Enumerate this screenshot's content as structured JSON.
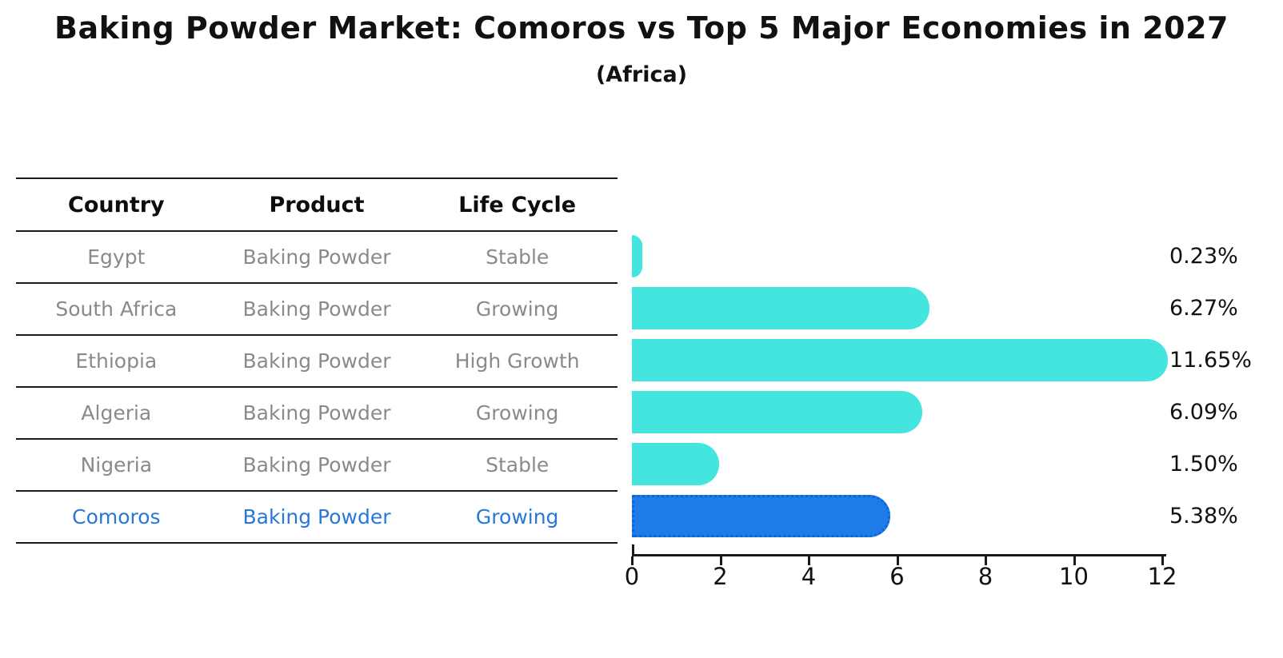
{
  "title": "Baking Powder Market: Comoros vs Top 5 Major Economies in 2027",
  "subtitle": "(Africa)",
  "colors": {
    "bar": "#44E5DF",
    "highlight_bar": "#1E7CE8",
    "highlight_bar_edge": "#0E63D8",
    "highlight_text": "#2878D8",
    "muted_text": "#8A8A8A",
    "text": "#111111",
    "line": "#1A1A1A"
  },
  "table": {
    "columns": [
      "Country",
      "Product",
      "Life Cycle"
    ],
    "rows": [
      {
        "country": "Egypt",
        "product": "Baking Powder",
        "life_cycle": "Stable",
        "highlight": false
      },
      {
        "country": "South Africa",
        "product": "Baking Powder",
        "life_cycle": "Growing",
        "highlight": false
      },
      {
        "country": "Ethiopia",
        "product": "Baking Powder",
        "life_cycle": "High Growth",
        "highlight": false
      },
      {
        "country": "Algeria",
        "product": "Baking Powder",
        "life_cycle": "Growing",
        "highlight": false
      },
      {
        "country": "Nigeria",
        "product": "Baking Powder",
        "life_cycle": "Stable",
        "highlight": false
      },
      {
        "country": "Comoros",
        "product": "Baking Powder",
        "life_cycle": "Growing",
        "highlight": true
      }
    ]
  },
  "chart_data": {
    "type": "bar",
    "orientation": "horizontal",
    "title": "Baking Powder Market: Comoros vs Top 5 Major Economies in 2027",
    "subtitle": "(Africa)",
    "categories": [
      "Egypt",
      "South Africa",
      "Ethiopia",
      "Algeria",
      "Nigeria",
      "Comoros"
    ],
    "values": [
      0.23,
      6.27,
      11.65,
      6.09,
      1.5,
      5.38
    ],
    "value_labels": [
      "0.23%",
      "6.27%",
      "11.65%",
      "6.09%",
      "1.50%",
      "5.38%"
    ],
    "highlight_category": "Comoros",
    "xlabel": "",
    "ylabel": "",
    "xlim": [
      0,
      12
    ],
    "xticks": [
      0,
      2,
      4,
      6,
      8,
      10,
      12
    ],
    "grid": false,
    "legend": false
  }
}
